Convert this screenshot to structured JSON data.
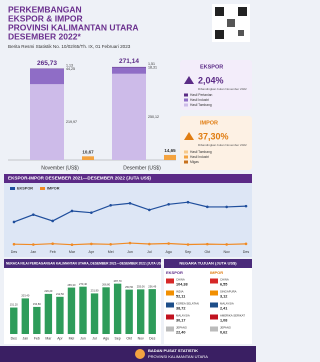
{
  "header": {
    "title": [
      "PERKEMBANGAN",
      "EKSPOR & IMPOR",
      "PROVINSI KALIMANTAN UTARA",
      "DESEMBER 2022*"
    ],
    "subtitle": "Berita Resmi Statistik No. 10/02/65/Th. IX, 01 Februari 2023"
  },
  "summary": {
    "ekspor": {
      "label": "EKSPOR",
      "change": "2,04%",
      "note": "Dibandingkan bulan November 2022"
    },
    "impor": {
      "label": "IMPOR",
      "change": "37,30%",
      "note": "Dibandingkan bulan November 2022",
      "legend": [
        {
          "name": "Hasil Tambang",
          "color": "#f7c98a"
        },
        {
          "name": "Hasil Industri",
          "color": "#f4a340"
        },
        {
          "name": "Migas",
          "color": "#c8711c"
        }
      ]
    }
  },
  "chart_data": [
    {
      "type": "stacked-bar",
      "categories": [
        "November (US$)",
        "Desember (US$)"
      ],
      "ylim": [
        0,
        290
      ],
      "series": [
        {
          "name": "Hasil Tambang",
          "color": "#cdbbe9",
          "values": [
            219.97,
            250.12
          ],
          "value_labels": [
            "219,97",
            "250,12"
          ]
        },
        {
          "name": "Hasil Industri",
          "color": "#8f6dc6",
          "values": [
            44.25,
            18.31
          ],
          "value_labels": [
            "44,25",
            "18,31"
          ]
        },
        {
          "name": "Hasil Pertanian",
          "color": "#5b2a86",
          "values": [
            1.13,
            1.51
          ],
          "value_labels": [
            "1,13",
            "1,51"
          ]
        }
      ],
      "totals": [
        265.73,
        271.14
      ],
      "total_labels": [
        "265,73",
        "271,14"
      ],
      "imports": {
        "color": "#f4a340",
        "values": [
          10.67,
          14.65
        ],
        "value_labels": [
          "10,67",
          "14,65"
        ]
      }
    },
    {
      "type": "line",
      "title": "EKSPOR-IMPOR DESEMBER 2021—DESEMBER 2022 (JUTA US$)",
      "categories": [
        "Des",
        "Jan",
        "Feb",
        "Mar",
        "Apr",
        "Mei",
        "Jun",
        "Jul",
        "Agu",
        "Sep",
        "Okt",
        "Nov",
        "Des"
      ],
      "ylim": [
        0,
        340
      ],
      "series": [
        {
          "name": "EKSPOR",
          "color": "#1f4e9c",
          "values": [
            163.5,
            213.2,
            170.4,
            238.1,
            226.7,
            276.8,
            290.5,
            245.3,
            283.6,
            297.9,
            266.2,
            265.73,
            271.14
          ]
        },
        {
          "name": "IMPOR",
          "color": "#f08a24",
          "values": [
            12.3,
            9.8,
            15.6,
            8.9,
            14.2,
            11.5,
            20.1,
            13.4,
            16.8,
            10.2,
            12.7,
            10.67,
            14.65
          ]
        }
      ]
    },
    {
      "type": "bar",
      "title": "NERACA NILAI PERDAGANGAN KALIMANTAN UTARA, DESEMBER 2021—DESEMBER 2022 (JUTA US$)",
      "categories": [
        "Des",
        "Jan",
        "Feb",
        "Mar",
        "Apr",
        "Mei",
        "Jun",
        "Jul",
        "Agu",
        "Sep",
        "Okt",
        "Nov",
        "Des"
      ],
      "ylim": [
        0,
        320
      ],
      "color": "#2e9c5a",
      "values": [
        151.2,
        203.4,
        154.8,
        229.2,
        212.5,
        265.3,
        270.4,
        231.9,
        266.8,
        287.7,
        253.5,
        255.06,
        256.49
      ],
      "value_labels": [
        "151,20",
        "203,40",
        "154,80",
        "229,20",
        "212,50",
        "265,30",
        "270,40",
        "231,90",
        "266,80",
        "287,70",
        "253,50",
        "255,06",
        "256,49"
      ]
    }
  ],
  "countries": {
    "title": "NEGARA TUJUAN (JUTA US$)",
    "ekspor": {
      "label": "EKSPOR",
      "rows": [
        [
          "CHINA",
          "104,38"
        ],
        [
          "INDIA",
          "52,11"
        ],
        [
          "KOREA SELATAN",
          "38,72"
        ],
        [
          "MALAYSIA",
          "30,17"
        ],
        [
          "JEPANG",
          "22,40"
        ]
      ]
    },
    "impor": {
      "label": "IMPOR",
      "rows": [
        [
          "CHINA",
          "6,55"
        ],
        [
          "SINGAPURA",
          "3,12"
        ],
        [
          "MALAYSIA",
          "2,41"
        ],
        [
          "AMERIKA SERIKAT",
          "1,08"
        ],
        [
          "JEPANG",
          "0,62"
        ]
      ]
    }
  },
  "footer": [
    "BADAN PUSAT STATISTIK",
    "PROVINSI KALIMANTAN UTARA"
  ]
}
